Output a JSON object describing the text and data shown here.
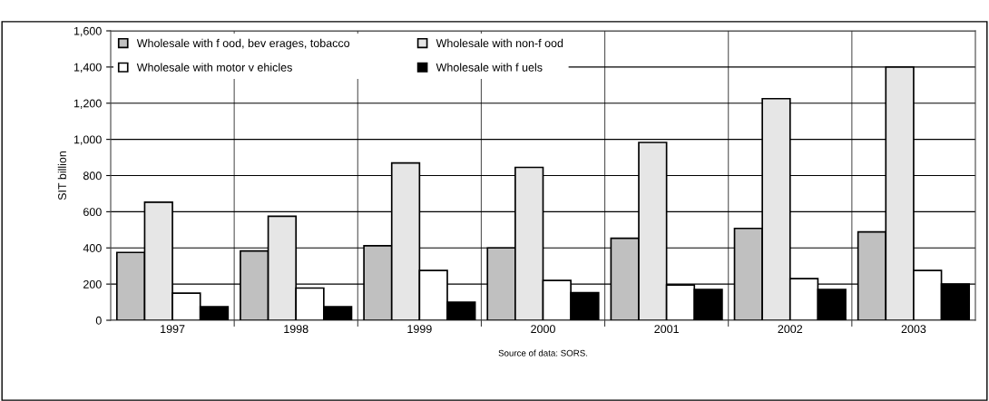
{
  "chart_data": {
    "type": "bar",
    "categories": [
      "1997",
      "1998",
      "1999",
      "2000",
      "2001",
      "2002",
      "2003"
    ],
    "series": [
      {
        "name": "Wholesale with f ood, bev erages, tobacco",
        "color": "#c0c0c0",
        "values": [
          375,
          383,
          412,
          400,
          453,
          508,
          488
        ]
      },
      {
        "name": "Wholesale with non-f ood",
        "color": "#e6e6e6",
        "values": [
          653,
          575,
          870,
          845,
          983,
          1225,
          1400
        ]
      },
      {
        "name": "Wholesale with motor v ehicles",
        "color": "#ffffff",
        "values": [
          150,
          178,
          275,
          220,
          195,
          230,
          275
        ]
      },
      {
        "name": "Wholesale with f uels",
        "color": "#000000",
        "values": [
          75,
          75,
          100,
          153,
          170,
          170,
          200
        ]
      }
    ],
    "ylabel": "SIT billion",
    "ylim": [
      0,
      1600
    ],
    "yticks": [
      {
        "value": 0,
        "label": "0"
      },
      {
        "value": 200,
        "label": "200"
      },
      {
        "value": 400,
        "label": "400"
      },
      {
        "value": 600,
        "label": "600"
      },
      {
        "value": 800,
        "label": "800"
      },
      {
        "value": 1000,
        "label": "1,000"
      },
      {
        "value": 1200,
        "label": "1,200"
      },
      {
        "value": 1400,
        "label": "1,400"
      },
      {
        "value": 1600,
        "label": "1,600"
      }
    ],
    "grid": true,
    "legend": "top left",
    "annotations": [
      "Source of data: SORS."
    ]
  }
}
